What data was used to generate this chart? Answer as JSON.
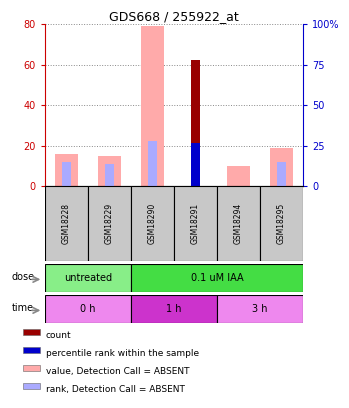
{
  "title": "GDS668 / 255922_at",
  "samples": [
    "GSM18228",
    "GSM18229",
    "GSM18290",
    "GSM18291",
    "GSM18294",
    "GSM18295"
  ],
  "value_absent": [
    16,
    15,
    79,
    0,
    10,
    19
  ],
  "rank_absent": [
    12,
    11,
    22,
    0,
    0,
    12
  ],
  "count_present": [
    0,
    0,
    0,
    62,
    0,
    0
  ],
  "rank_present": [
    0,
    0,
    0,
    21,
    0,
    0
  ],
  "ylim_left": [
    0,
    80
  ],
  "ylim_right": [
    0,
    100
  ],
  "yticks_left": [
    0,
    20,
    40,
    60,
    80
  ],
  "yticks_right": [
    0,
    25,
    50,
    75,
    100
  ],
  "ytick_labels_left": [
    "0",
    "20",
    "40",
    "60",
    "80"
  ],
  "ytick_labels_right": [
    "0",
    "25",
    "50",
    "75",
    "100%"
  ],
  "dose_groups": [
    {
      "label": "untreated",
      "start": 0,
      "end": 2,
      "color": "#88ee88"
    },
    {
      "label": "0.1 uM IAA",
      "start": 2,
      "end": 6,
      "color": "#44dd44"
    }
  ],
  "time_groups": [
    {
      "label": "0 h",
      "start": 0,
      "end": 2,
      "color": "#ee88ee"
    },
    {
      "label": "1 h",
      "start": 2,
      "end": 4,
      "color": "#cc33cc"
    },
    {
      "label": "3 h",
      "start": 4,
      "end": 6,
      "color": "#ee88ee"
    }
  ],
  "color_value_absent": "#ffaaaa",
  "color_rank_absent": "#aaaaff",
  "color_count_present": "#990000",
  "color_rank_present": "#0000cc",
  "bar_width": 0.55,
  "sample_box_color": "#c8c8c8",
  "left_axis_color": "#cc0000",
  "right_axis_color": "#0000cc",
  "legend_items": [
    {
      "label": "count",
      "color": "#990000"
    },
    {
      "label": "percentile rank within the sample",
      "color": "#0000cc"
    },
    {
      "label": "value, Detection Call = ABSENT",
      "color": "#ffaaaa"
    },
    {
      "label": "rank, Detection Call = ABSENT",
      "color": "#aaaaff"
    }
  ]
}
